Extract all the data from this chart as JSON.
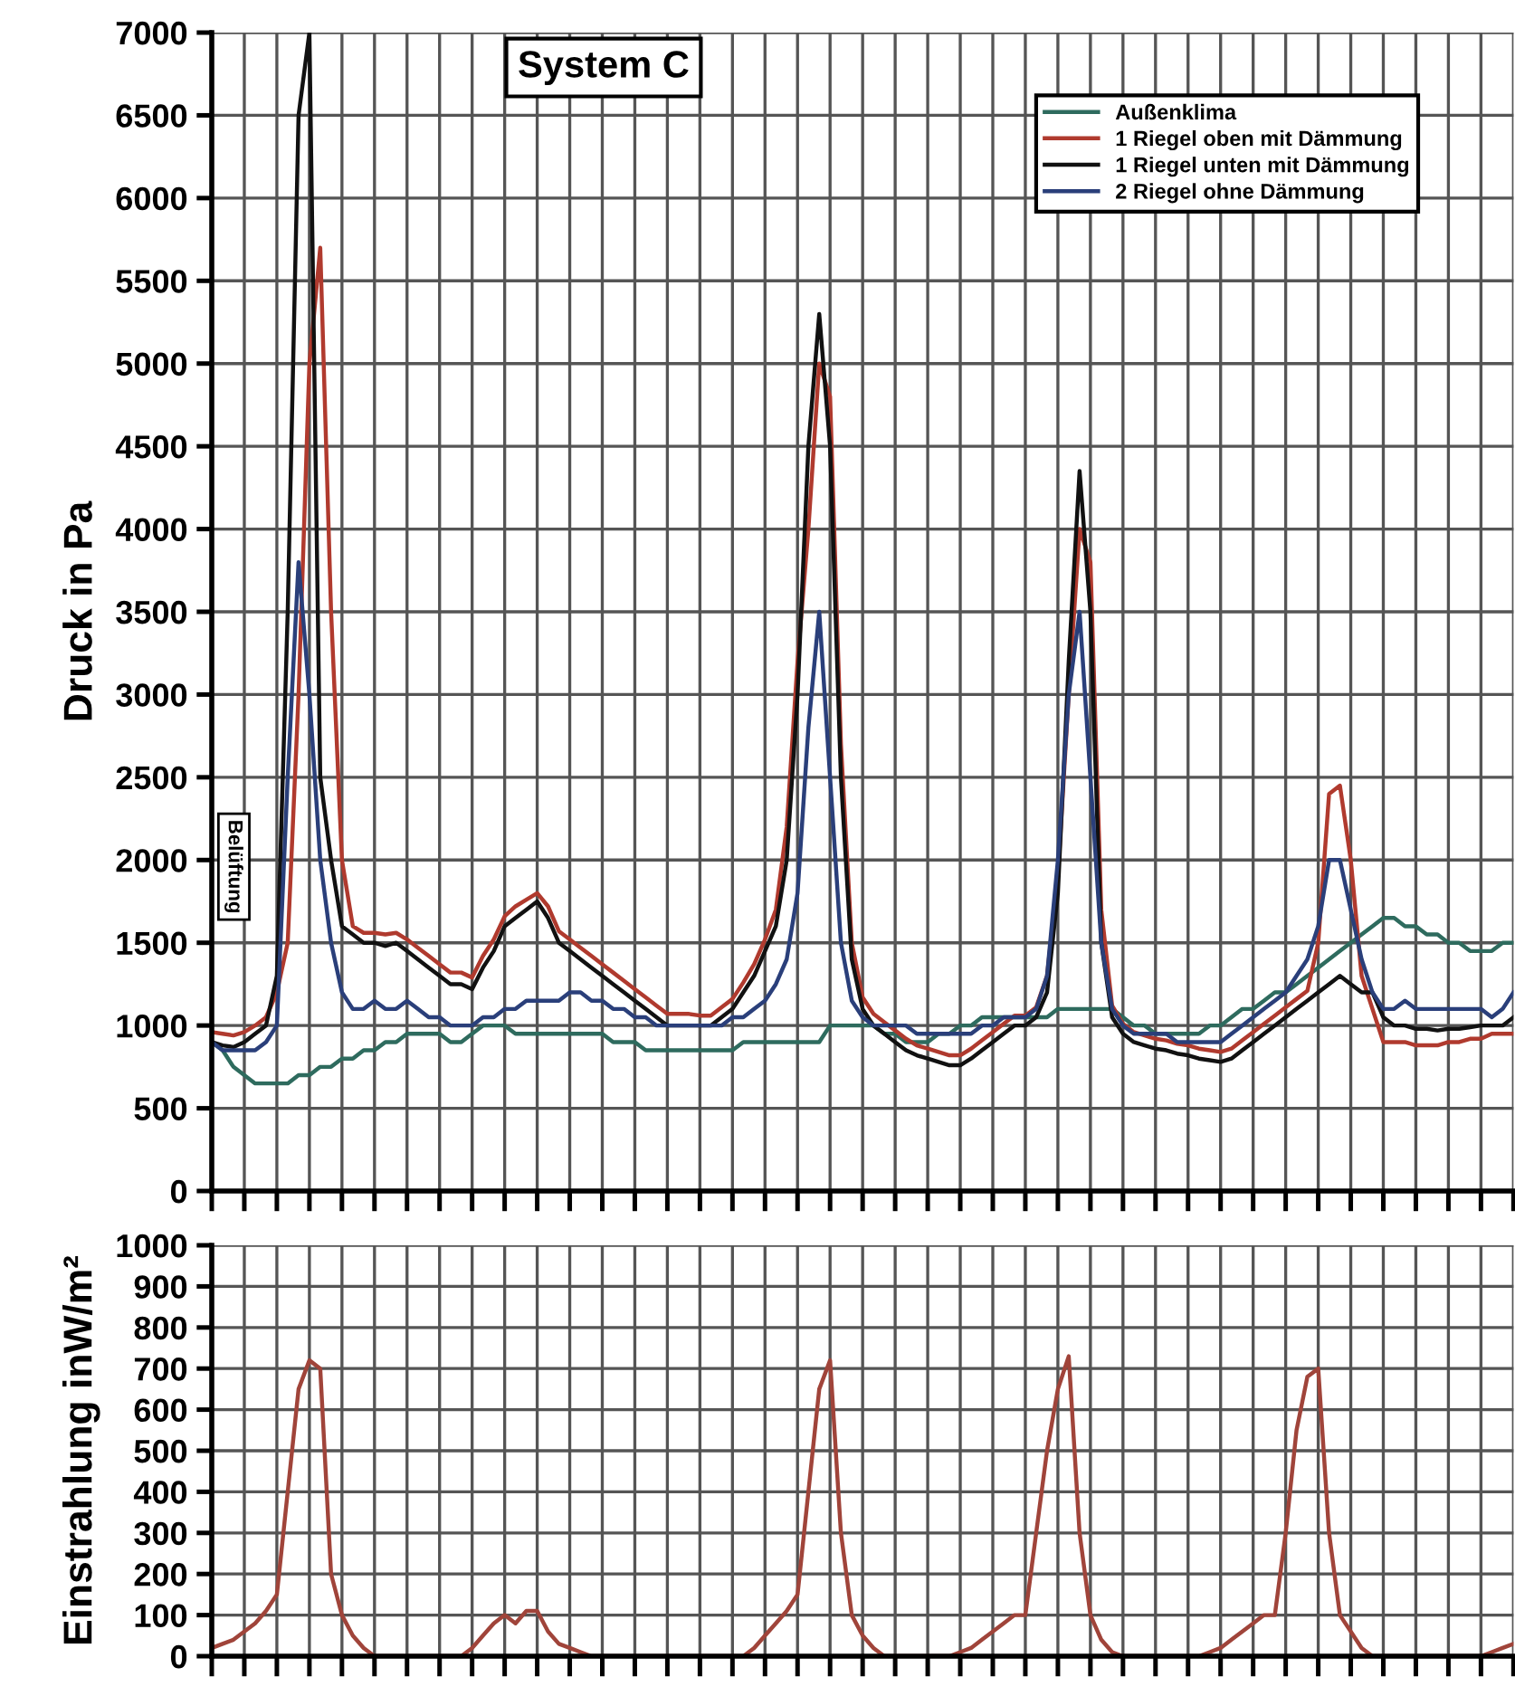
{
  "chart_data": [
    {
      "type": "line",
      "title": "System C",
      "ylabel": "Druck in Pa",
      "categories": [
        null,
        null,
        null,
        null,
        null,
        null,
        null,
        null,
        null,
        null,
        null,
        null,
        null,
        null,
        null,
        null,
        null,
        null,
        null,
        null,
        null,
        null,
        null,
        null,
        null,
        null,
        null,
        null,
        null,
        null,
        null,
        null,
        null,
        null,
        null,
        null,
        null,
        null,
        null,
        null,
        null,
        null,
        null,
        null,
        null,
        null,
        null,
        null,
        null,
        null,
        null,
        null,
        null,
        null,
        null,
        null,
        null,
        null,
        null,
        null,
        null,
        null,
        null,
        null,
        null,
        null,
        null,
        null,
        null,
        null,
        null,
        null,
        null,
        null,
        null,
        null,
        null,
        null,
        null,
        null,
        null,
        null,
        null,
        null,
        null,
        null,
        null,
        null,
        null,
        null,
        null,
        null,
        null,
        null,
        null,
        null,
        null,
        null,
        null,
        null,
        null,
        null,
        null,
        null,
        null,
        null,
        null,
        null,
        null,
        null,
        null,
        null,
        null,
        null,
        null,
        null,
        null,
        null,
        null,
        null,
        null
      ],
      "ylim": [
        0,
        7000
      ],
      "yticks": [
        0,
        500,
        1000,
        1500,
        2000,
        2500,
        3000,
        3500,
        4000,
        4500,
        5000,
        5500,
        6000,
        6500,
        7000
      ],
      "grid": true,
      "legend": "top right",
      "tick_labels": "y",
      "annotations": [
        "Belüftung"
      ],
      "series": [
        {
          "name": "Außenklima",
          "color": "#2e6b5e",
          "values": [
            900,
            850,
            750,
            700,
            650,
            650,
            650,
            650,
            700,
            700,
            750,
            750,
            800,
            800,
            850,
            850,
            900,
            900,
            950,
            950,
            950,
            950,
            900,
            900,
            950,
            1000,
            1000,
            1000,
            950,
            950,
            950,
            950,
            950,
            950,
            950,
            950,
            950,
            900,
            900,
            900,
            850,
            850,
            850,
            850,
            850,
            850,
            850,
            850,
            850,
            900,
            900,
            900,
            900,
            900,
            900,
            900,
            900,
            1000,
            1000,
            1000,
            1000,
            1000,
            950,
            950,
            900,
            900,
            900,
            950,
            950,
            1000,
            1000,
            1050,
            1050,
            1050,
            1050,
            1050,
            1050,
            1050,
            1100,
            1100,
            1100,
            1100,
            1100,
            1100,
            1050,
            1000,
            1000,
            950,
            950,
            950,
            950,
            950,
            1000,
            1000,
            1050,
            1100,
            1100,
            1150,
            1200,
            1200,
            1250,
            1300,
            1350,
            1400,
            1450,
            1500,
            1550,
            1600,
            1650,
            1650,
            1600,
            1600,
            1550,
            1550,
            1500,
            1500,
            1450,
            1450,
            1450,
            1500,
            1500
          ]
        },
        {
          "name": "1 Riegel oben mit Dämmung",
          "color": "#b03a2e",
          "values": [
            960,
            950,
            940,
            960,
            1000,
            1050,
            1200,
            1500,
            3000,
            5000,
            5700,
            3500,
            2000,
            1600,
            1560,
            1560,
            1550,
            1560,
            1520,
            1470,
            1420,
            1370,
            1320,
            1320,
            1290,
            1420,
            1520,
            1660,
            1720,
            1760,
            1800,
            1720,
            1570,
            1520,
            1470,
            1420,
            1370,
            1320,
            1270,
            1220,
            1170,
            1120,
            1070,
            1070,
            1070,
            1060,
            1060,
            1110,
            1160,
            1260,
            1370,
            1520,
            1700,
            2200,
            3200,
            4000,
            5000,
            4800,
            2700,
            1500,
            1170,
            1070,
            1020,
            970,
            920,
            880,
            860,
            840,
            820,
            820,
            860,
            910,
            960,
            1010,
            1060,
            1060,
            1110,
            1300,
            1900,
            3000,
            4000,
            3800,
            1700,
            1120,
            1010,
            960,
            940,
            920,
            910,
            890,
            880,
            860,
            850,
            840,
            860,
            910,
            960,
            1010,
            1060,
            1110,
            1160,
            1210,
            1500,
            2400,
            2450,
            2000,
            1300,
            1100,
            900,
            900,
            900,
            880,
            880,
            880,
            900,
            900,
            920,
            920,
            950,
            950,
            950
          ]
        },
        {
          "name": "1 Riegel unten mit Dämmung",
          "color": "#111111",
          "values": [
            900,
            880,
            870,
            900,
            950,
            1000,
            1300,
            3500,
            6500,
            7000,
            2500,
            2000,
            1600,
            1550,
            1500,
            1500,
            1480,
            1500,
            1450,
            1400,
            1350,
            1300,
            1250,
            1250,
            1220,
            1350,
            1450,
            1600,
            1650,
            1700,
            1750,
            1650,
            1500,
            1450,
            1400,
            1350,
            1300,
            1250,
            1200,
            1150,
            1100,
            1050,
            1000,
            1000,
            1000,
            1000,
            1000,
            1050,
            1100,
            1200,
            1300,
            1450,
            1600,
            2000,
            3000,
            4500,
            5300,
            4500,
            2500,
            1400,
            1100,
            1000,
            950,
            900,
            850,
            820,
            800,
            780,
            760,
            760,
            800,
            850,
            900,
            950,
            1000,
            1000,
            1050,
            1200,
            1800,
            3200,
            4350,
            3500,
            1500,
            1050,
            950,
            900,
            880,
            860,
            850,
            830,
            820,
            800,
            790,
            780,
            800,
            850,
            900,
            950,
            1000,
            1050,
            1100,
            1150,
            1200,
            1250,
            1300,
            1250,
            1200,
            1200,
            1050,
            1000,
            1000,
            980,
            980,
            970,
            980,
            980,
            990,
            1000,
            1000,
            1000,
            1050
          ]
        },
        {
          "name": "2 Riegel ohne Dämmung",
          "color": "#2a3f7a",
          "values": [
            900,
            850,
            850,
            850,
            850,
            900,
            1000,
            2500,
            3800,
            3000,
            2000,
            1500,
            1200,
            1100,
            1100,
            1150,
            1100,
            1100,
            1150,
            1100,
            1050,
            1050,
            1000,
            1000,
            1000,
            1050,
            1050,
            1100,
            1100,
            1150,
            1150,
            1150,
            1150,
            1200,
            1200,
            1150,
            1150,
            1100,
            1100,
            1050,
            1050,
            1000,
            1000,
            1000,
            1000,
            1000,
            1000,
            1000,
            1050,
            1050,
            1100,
            1150,
            1250,
            1400,
            1800,
            2800,
            3500,
            2500,
            1500,
            1150,
            1050,
            1000,
            1000,
            1000,
            1000,
            950,
            950,
            950,
            950,
            950,
            950,
            1000,
            1000,
            1050,
            1050,
            1050,
            1100,
            1300,
            2000,
            3000,
            3500,
            2500,
            1500,
            1100,
            1000,
            950,
            950,
            950,
            950,
            900,
            900,
            900,
            900,
            900,
            950,
            1000,
            1050,
            1100,
            1150,
            1200,
            1300,
            1400,
            1600,
            2000,
            2000,
            1700,
            1400,
            1200,
            1100,
            1100,
            1150,
            1100,
            1100,
            1100,
            1100,
            1100,
            1100,
            1100,
            1050,
            1100,
            1200
          ]
        }
      ]
    },
    {
      "type": "line",
      "ylabel": "Einstrahlung inW/m²",
      "categories": [
        null,
        null,
        null,
        null,
        null,
        null,
        null,
        null,
        null,
        null,
        null,
        null,
        null,
        null,
        null,
        null,
        null,
        null,
        null,
        null,
        null,
        null,
        null,
        null,
        null,
        null,
        null,
        null,
        null,
        null,
        null,
        null,
        null,
        null,
        null,
        null,
        null,
        null,
        null,
        null,
        null,
        null,
        null,
        null,
        null,
        null,
        null,
        null,
        null,
        null,
        null,
        null,
        null,
        null,
        null,
        null,
        null,
        null,
        null,
        null,
        null,
        null,
        null,
        null,
        null,
        null,
        null,
        null,
        null,
        null,
        null,
        null,
        null,
        null,
        null,
        null,
        null,
        null,
        null,
        null,
        null,
        null,
        null,
        null,
        null,
        null,
        null,
        null,
        null,
        null,
        null,
        null,
        null,
        null,
        null,
        null,
        null,
        null,
        null,
        null,
        null,
        null,
        null,
        null,
        null,
        null,
        null,
        null,
        null,
        null,
        null,
        null,
        null,
        null,
        null,
        null,
        null,
        null,
        null,
        null,
        null
      ],
      "ylim": [
        0,
        1000
      ],
      "yticks": [
        0,
        100,
        200,
        300,
        400,
        500,
        600,
        700,
        800,
        900,
        1000
      ],
      "grid": true,
      "tick_labels": "y",
      "series": [
        {
          "color": "#a0443a",
          "values": [
            20,
            30,
            40,
            60,
            80,
            110,
            150,
            400,
            650,
            720,
            700,
            200,
            100,
            50,
            20,
            0,
            0,
            0,
            0,
            0,
            0,
            0,
            0,
            0,
            20,
            50,
            80,
            100,
            80,
            110,
            110,
            60,
            30,
            20,
            10,
            0,
            0,
            0,
            0,
            0,
            0,
            0,
            0,
            0,
            0,
            0,
            0,
            0,
            0,
            0,
            20,
            50,
            80,
            110,
            150,
            400,
            650,
            720,
            300,
            100,
            50,
            20,
            0,
            0,
            0,
            0,
            0,
            0,
            0,
            10,
            20,
            40,
            60,
            80,
            100,
            100,
            300,
            500,
            650,
            730,
            300,
            100,
            40,
            10,
            0,
            0,
            0,
            0,
            0,
            0,
            0,
            0,
            10,
            20,
            40,
            60,
            80,
            100,
            100,
            300,
            550,
            680,
            700,
            300,
            100,
            60,
            20,
            0,
            0,
            0,
            0,
            0,
            0,
            0,
            0,
            0,
            0,
            0,
            10,
            20,
            30
          ]
        }
      ]
    }
  ]
}
